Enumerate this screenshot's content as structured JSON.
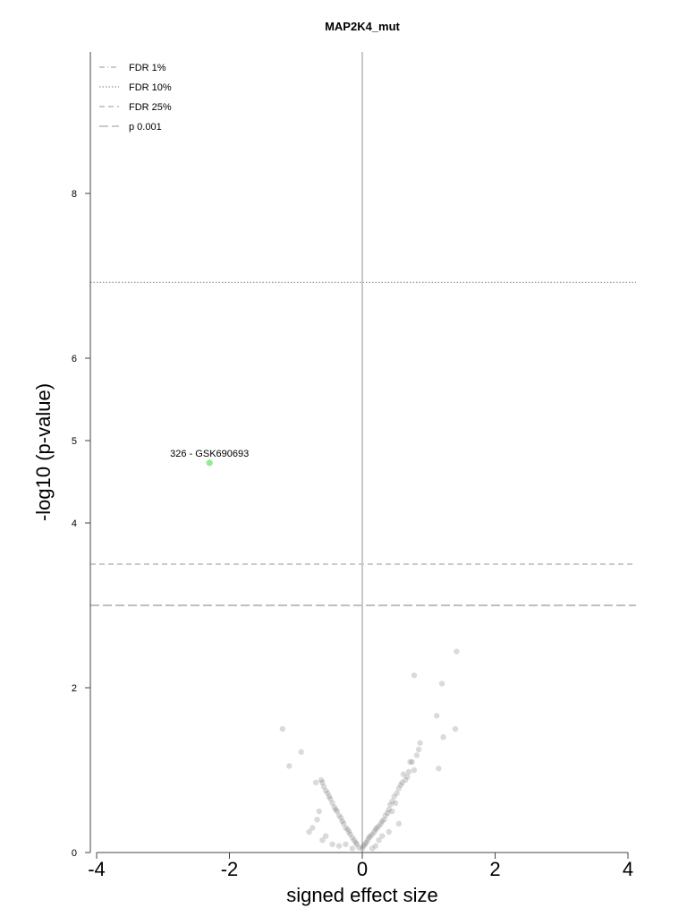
{
  "chart_data": {
    "type": "scatter",
    "title": "MAP2K4_mut",
    "xlabel": "signed effect size",
    "ylabel": "-log10 (p-value)",
    "xlim": [
      -4,
      4
    ],
    "ylim": [
      0,
      9.75
    ],
    "x_ticks": [
      "-4",
      "-2",
      "0",
      "2",
      "4"
    ],
    "y_ticks": [
      "0",
      "2",
      "4",
      "5",
      "6",
      "8"
    ],
    "grid": false,
    "legend_position": "top-left",
    "legend": [
      {
        "label": "FDR 1%",
        "style": "dashdot",
        "y": null
      },
      {
        "label": "FDR 10%",
        "style": "dotted",
        "y": 6.92
      },
      {
        "label": "FDR 25%",
        "style": "dashed",
        "y": 3.5
      },
      {
        "label": "p 0.001",
        "style": "longdash",
        "y": 3.0
      }
    ],
    "highlight": {
      "label": "326 - GSK690693",
      "x": -2.3,
      "y": 4.73,
      "color": "#90ee90"
    },
    "points": [
      [
        1.42,
        2.44
      ],
      [
        1.2,
        2.05
      ],
      [
        0.78,
        2.15
      ],
      [
        1.12,
        1.66
      ],
      [
        1.22,
        1.4
      ],
      [
        1.4,
        1.5
      ],
      [
        1.15,
        1.02
      ],
      [
        -1.2,
        1.5
      ],
      [
        -0.92,
        1.22
      ],
      [
        -1.1,
        1.05
      ],
      [
        -0.7,
        0.85
      ],
      [
        0.87,
        1.33
      ],
      [
        0.85,
        1.25
      ],
      [
        0.82,
        1.18
      ],
      [
        0.75,
        1.1
      ],
      [
        0.72,
        1.1
      ],
      [
        0.78,
        1.0
      ],
      [
        0.7,
        0.98
      ],
      [
        0.68,
        0.92
      ],
      [
        0.65,
        0.88
      ],
      [
        0.6,
        0.85
      ],
      [
        0.55,
        0.78
      ],
      [
        0.52,
        0.72
      ],
      [
        0.48,
        0.68
      ],
      [
        0.45,
        0.62
      ],
      [
        0.42,
        0.58
      ],
      [
        0.4,
        0.52
      ],
      [
        0.38,
        0.48
      ],
      [
        0.35,
        0.45
      ],
      [
        0.33,
        0.4
      ],
      [
        0.3,
        0.38
      ],
      [
        0.28,
        0.35
      ],
      [
        0.25,
        0.32
      ],
      [
        0.22,
        0.3
      ],
      [
        0.2,
        0.28
      ],
      [
        0.18,
        0.25
      ],
      [
        0.15,
        0.22
      ],
      [
        0.12,
        0.2
      ],
      [
        0.1,
        0.18
      ],
      [
        0.08,
        0.15
      ],
      [
        0.06,
        0.12
      ],
      [
        0.04,
        0.1
      ],
      [
        0.02,
        0.08
      ],
      [
        0.0,
        0.05
      ],
      [
        0.62,
        0.95
      ],
      [
        0.58,
        0.82
      ],
      [
        0.5,
        0.6
      ],
      [
        0.45,
        0.5
      ],
      [
        0.3,
        0.2
      ],
      [
        0.25,
        0.15
      ],
      [
        0.4,
        0.25
      ],
      [
        0.55,
        0.35
      ],
      [
        -0.05,
        0.06
      ],
      [
        -0.08,
        0.1
      ],
      [
        -0.1,
        0.12
      ],
      [
        -0.12,
        0.15
      ],
      [
        -0.15,
        0.18
      ],
      [
        -0.18,
        0.22
      ],
      [
        -0.2,
        0.25
      ],
      [
        -0.22,
        0.28
      ],
      [
        -0.25,
        0.3
      ],
      [
        -0.28,
        0.35
      ],
      [
        -0.3,
        0.38
      ],
      [
        -0.32,
        0.42
      ],
      [
        -0.35,
        0.45
      ],
      [
        -0.38,
        0.5
      ],
      [
        -0.4,
        0.52
      ],
      [
        -0.42,
        0.55
      ],
      [
        -0.45,
        0.6
      ],
      [
        -0.48,
        0.65
      ],
      [
        -0.5,
        0.68
      ],
      [
        -0.52,
        0.72
      ],
      [
        -0.55,
        0.75
      ],
      [
        -0.58,
        0.8
      ],
      [
        -0.6,
        0.85
      ],
      [
        -0.62,
        0.88
      ],
      [
        -0.65,
        0.5
      ],
      [
        -0.68,
        0.4
      ],
      [
        -0.75,
        0.3
      ],
      [
        -0.8,
        0.25
      ],
      [
        -0.55,
        0.2
      ],
      [
        -0.45,
        0.1
      ],
      [
        -0.35,
        0.08
      ],
      [
        -0.6,
        0.15
      ],
      [
        -0.15,
        0.05
      ],
      [
        -0.25,
        0.1
      ],
      [
        0.15,
        0.05
      ],
      [
        0.2,
        0.08
      ]
    ]
  }
}
